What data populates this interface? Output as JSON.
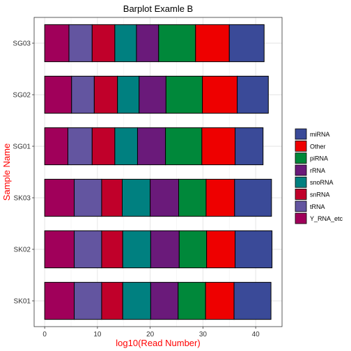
{
  "chart_data": {
    "type": "bar",
    "orientation": "horizontal",
    "stacked": true,
    "title": "Barplot Examle B",
    "xlabel": "log10(Read Number)",
    "ylabel": "Sample Name",
    "label_color": "#ff0000",
    "xlim": [
      -2,
      45
    ],
    "xticks": [
      0,
      10,
      20,
      30,
      40
    ],
    "grid": true,
    "legend_position": "right",
    "categories": [
      "SG03",
      "SG02",
      "SG01",
      "SK03",
      "SK02",
      "SK01"
    ],
    "series": [
      {
        "name": "Y_RNA_etc",
        "color": "#a0005a",
        "values": [
          4.6,
          5.1,
          4.4,
          5.6,
          5.6,
          5.6
        ]
      },
      {
        "name": "tRNA",
        "color": "#6355a0",
        "values": [
          4.4,
          4.3,
          4.6,
          5.2,
          5.2,
          5.2
        ]
      },
      {
        "name": "snRNA",
        "color": "#c0002a",
        "values": [
          4.3,
          4.4,
          4.3,
          3.9,
          4.0,
          4.0
        ]
      },
      {
        "name": "snoRNA",
        "color": "#008080",
        "values": [
          4.1,
          4.1,
          4.3,
          5.3,
          5.3,
          5.3
        ]
      },
      {
        "name": "rRNA",
        "color": "#6a1a7a",
        "values": [
          4.2,
          5.1,
          5.3,
          5.4,
          5.4,
          5.2
        ]
      },
      {
        "name": "piRNA",
        "color": "#00883a",
        "values": [
          7.0,
          6.9,
          6.9,
          5.2,
          5.2,
          5.2
        ]
      },
      {
        "name": "Other",
        "color": "#ee0000",
        "values": [
          6.4,
          6.6,
          6.3,
          5.4,
          5.4,
          5.4
        ]
      },
      {
        "name": "miRNA",
        "color": "#3a4a98",
        "values": [
          6.6,
          5.9,
          5.3,
          7.0,
          7.0,
          7.0
        ]
      }
    ],
    "legend_order": [
      "miRNA",
      "Other",
      "piRNA",
      "rRNA",
      "snoRNA",
      "snRNA",
      "tRNA",
      "Y_RNA_etc"
    ]
  }
}
